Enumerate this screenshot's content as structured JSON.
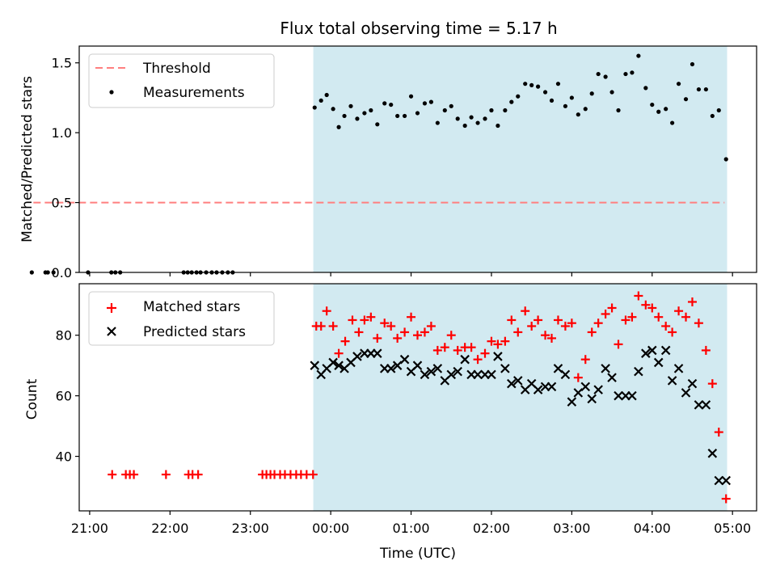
{
  "title": "Flux total observing time = 5.17 h",
  "chart_data": [
    {
      "type": "scatter",
      "ylabel": "Matched/Predicted stars",
      "ylim": [
        0,
        1.62
      ],
      "yticks": [
        0.0,
        0.5,
        1.0,
        1.5
      ],
      "ytick_labels": [
        "0.0",
        "0.5",
        "1.0",
        "1.5"
      ],
      "grid": false,
      "legend_position": "top-left",
      "shaded_interval_hours": [
        -0.217,
        4.933
      ],
      "shade_color": "#add8e6",
      "threshold": {
        "name": "Threshold",
        "y": 0.5,
        "x_range_hours": [
          -3.7,
          4.9
        ],
        "color": "#ff7f7f",
        "style": "dashed"
      },
      "series": [
        {
          "name": "Measurements",
          "color": "#000000",
          "marker": "dot",
          "x_hours": [
            -3.72,
            -3.55,
            -3.52,
            -3.45,
            -3.02,
            -2.73,
            -2.68,
            -2.62,
            -1.83,
            -1.78,
            -1.73,
            -1.67,
            -1.62,
            -1.55,
            -1.48,
            -1.42,
            -1.35,
            -1.28,
            -1.22,
            -0.2,
            -0.12,
            -0.05,
            0.03,
            0.1,
            0.17,
            0.25,
            0.33,
            0.42,
            0.5,
            0.58,
            0.67,
            0.75,
            0.83,
            0.92,
            1.0,
            1.08,
            1.17,
            1.25,
            1.33,
            1.42,
            1.5,
            1.58,
            1.67,
            1.75,
            1.83,
            1.92,
            2.0,
            2.08,
            2.17,
            2.25,
            2.33,
            2.42,
            2.5,
            2.58,
            2.67,
            2.75,
            2.83,
            2.92,
            3.0,
            3.08,
            3.17,
            3.25,
            3.33,
            3.42,
            3.5,
            3.58,
            3.67,
            3.75,
            3.83,
            3.92,
            4.0,
            4.08,
            4.17,
            4.25,
            4.33,
            4.42,
            4.5,
            4.58,
            4.67,
            4.75,
            4.83,
            4.92
          ],
          "y": [
            0,
            0,
            0,
            0,
            0,
            0,
            0,
            0,
            0,
            0,
            0,
            0,
            0,
            0,
            0,
            0,
            0,
            0,
            0,
            1.18,
            1.23,
            1.27,
            1.17,
            1.04,
            1.12,
            1.19,
            1.1,
            1.14,
            1.16,
            1.06,
            1.21,
            1.2,
            1.12,
            1.12,
            1.26,
            1.14,
            1.21,
            1.22,
            1.07,
            1.16,
            1.19,
            1.1,
            1.05,
            1.11,
            1.07,
            1.1,
            1.16,
            1.05,
            1.16,
            1.22,
            1.26,
            1.35,
            1.34,
            1.33,
            1.29,
            1.23,
            1.35,
            1.19,
            1.25,
            1.13,
            1.17,
            1.28,
            1.42,
            1.4,
            1.29,
            1.16,
            1.42,
            1.43,
            1.55,
            1.32,
            1.2,
            1.15,
            1.17,
            1.07,
            1.35,
            1.24,
            1.49,
            1.31,
            1.31,
            1.12,
            1.16,
            0.81
          ]
        }
      ]
    },
    {
      "type": "scatter",
      "xlabel": "Time (UTC)",
      "ylabel": "Count",
      "ylim": [
        22,
        97
      ],
      "yticks": [
        40,
        60,
        80
      ],
      "ytick_labels": [
        "40",
        "60",
        "80"
      ],
      "xlim_hours": [
        -3.13,
        5.3
      ],
      "xticks_hours": [
        -3,
        -2,
        -1,
        0,
        1,
        2,
        3,
        4,
        5
      ],
      "xtick_labels": [
        "21:00",
        "22:00",
        "23:00",
        "00:00",
        "01:00",
        "02:00",
        "03:00",
        "04:00",
        "05:00"
      ],
      "grid": false,
      "legend_position": "top-left",
      "shaded_interval_hours": [
        -0.217,
        4.933
      ],
      "shade_color": "#add8e6",
      "series": [
        {
          "name": "Matched stars",
          "color": "#ff0000",
          "marker": "plus",
          "x_hours": [
            -2.72,
            -2.55,
            -2.5,
            -2.45,
            -2.05,
            -1.77,
            -1.72,
            -1.65,
            -0.85,
            -0.8,
            -0.75,
            -0.7,
            -0.63,
            -0.57,
            -0.5,
            -0.43,
            -0.37,
            -0.3,
            -0.22,
            -0.18,
            -0.12,
            -0.05,
            0.03,
            0.1,
            0.18,
            0.27,
            0.35,
            0.42,
            0.5,
            0.58,
            0.67,
            0.75,
            0.83,
            0.92,
            1.0,
            1.08,
            1.17,
            1.25,
            1.33,
            1.42,
            1.5,
            1.58,
            1.67,
            1.75,
            1.83,
            1.92,
            2.0,
            2.08,
            2.17,
            2.25,
            2.33,
            2.42,
            2.5,
            2.58,
            2.67,
            2.75,
            2.83,
            2.92,
            3.0,
            3.08,
            3.17,
            3.25,
            3.33,
            3.42,
            3.5,
            3.58,
            3.67,
            3.75,
            3.83,
            3.92,
            4.0,
            4.08,
            4.17,
            4.25,
            4.33,
            4.42,
            4.5,
            4.58,
            4.67,
            4.75,
            4.83,
            4.92
          ],
          "y": [
            34,
            34,
            34,
            34,
            34,
            34,
            34,
            34,
            34,
            34,
            34,
            34,
            34,
            34,
            34,
            34,
            34,
            34,
            34,
            83,
            83,
            88,
            83,
            74,
            78,
            85,
            81,
            85,
            86,
            79,
            84,
            83,
            79,
            81,
            86,
            80,
            81,
            83,
            75,
            76,
            80,
            75,
            76,
            76,
            72,
            74,
            78,
            77,
            78,
            85,
            81,
            88,
            83,
            85,
            80,
            79,
            85,
            83,
            84,
            66,
            72,
            81,
            84,
            87,
            89,
            77,
            85,
            86,
            93,
            90,
            89,
            86,
            83,
            81,
            88,
            86,
            91,
            84,
            75,
            64,
            48,
            26
          ]
        },
        {
          "name": "Predicted stars",
          "color": "#000000",
          "marker": "x",
          "x_hours": [
            -0.2,
            -0.12,
            -0.05,
            0.03,
            0.1,
            0.17,
            0.25,
            0.33,
            0.42,
            0.5,
            0.58,
            0.67,
            0.75,
            0.83,
            0.92,
            1.0,
            1.08,
            1.17,
            1.25,
            1.33,
            1.42,
            1.5,
            1.58,
            1.67,
            1.75,
            1.83,
            1.92,
            2.0,
            2.08,
            2.17,
            2.25,
            2.33,
            2.42,
            2.5,
            2.58,
            2.67,
            2.75,
            2.83,
            2.92,
            3.0,
            3.08,
            3.17,
            3.25,
            3.33,
            3.42,
            3.5,
            3.58,
            3.67,
            3.75,
            3.83,
            3.92,
            4.0,
            4.08,
            4.17,
            4.25,
            4.33,
            4.42,
            4.5,
            4.58,
            4.67,
            4.75,
            4.83,
            4.92
          ],
          "y": [
            70,
            67,
            69,
            71,
            70,
            69,
            71,
            73,
            74,
            74,
            74,
            69,
            69,
            70,
            72,
            68,
            70,
            67,
            68,
            69,
            65,
            67,
            68,
            72,
            67,
            67,
            67,
            67,
            73,
            69,
            64,
            65,
            62,
            64,
            62,
            63,
            63,
            69,
            67,
            58,
            61,
            63,
            59,
            62,
            69,
            66,
            60,
            60,
            60,
            68,
            74,
            75,
            71,
            75,
            65,
            69,
            61,
            64,
            57,
            57,
            41,
            32,
            32
          ]
        }
      ]
    }
  ]
}
